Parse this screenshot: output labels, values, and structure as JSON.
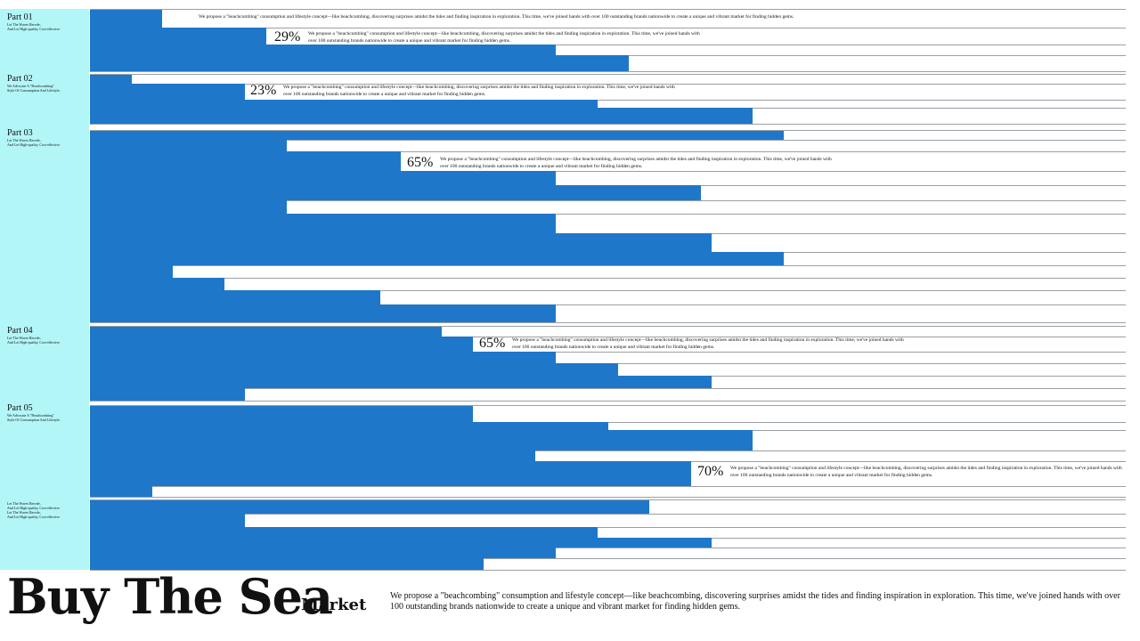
{
  "sections": [
    {
      "title": "Part 01",
      "sub": [
        "Let The Waves Recede,",
        "And Let High-quality, Cost-effective"
      ]
    },
    {
      "title": "Part 02",
      "sub": [
        "We Advocate A \"Beachcombing\"",
        "Style Of Consumption And Lifestyle."
      ]
    },
    {
      "title": "Part 03",
      "sub": [
        "Let The Waves Recede,",
        "And Let High-quality, Cost-effective"
      ]
    },
    {
      "title": "Part 04",
      "sub": [
        "Let The Waves Recede,",
        "And Let High-quality, Cost-effective"
      ]
    },
    {
      "title": "Part 05",
      "sub": [
        "We Advocate A \"Beachcombing\"",
        "Style Of Consumption And Lifestyle."
      ]
    },
    {
      "title": "",
      "sub": [
        "Let The Waves Recede,",
        "And Let High-quality, Cost-effective",
        "Let The Waves Recede,",
        "And Let High-quality, Cost-effective"
      ]
    }
  ],
  "captions": [
    {
      "percent": "",
      "lines": [
        "We propose a \"beachcombing\" consumption and lifestyle concept—like beachcombing, discovering surprises amidst the tides and finding inspiration in exploration. This time, we've joined hands with over 100 outstanding brands nationwide to create a unique and vibrant market for finding hidden gems."
      ]
    },
    {
      "percent": "29%",
      "lines": [
        "We propose a \"beachcombing\" consumption and lifestyle concept—like beachcombing, discovering surprises amidst the tides and finding inspiration in exploration. This time, we've joined hands with",
        "over 100 outstanding brands nationwide to create a unique and vibrant market for finding hidden gems."
      ]
    },
    {
      "percent": "23%",
      "lines": [
        "We propose a \"beachcombing\" consumption and lifestyle concept—like beachcombing, discovering surprises amidst the tides and finding inspiration in exploration. This time, we've joined hands with",
        "over 100 outstanding brands nationwide to create a unique and vibrant market for finding hidden gems."
      ]
    },
    {
      "percent": "65%",
      "lines": [
        "We propose a \"beachcombing\" consumption and lifestyle concept—like beachcombing, discovering surprises amidst the tides and finding inspiration in exploration. This time, we've joined hands with",
        "over 100 outstanding brands nationwide to create a unique and vibrant market for finding hidden gems."
      ]
    },
    {
      "percent": "65%",
      "lines": [
        "We propose a \"beachcombing\" consumption and lifestyle concept—like beachcombing, discovering surprises amidst the tides and finding inspiration in exploration. This time, we've joined hands with",
        "over 100 outstanding brands nationwide to create a unique and vibrant market for finding hidden gems."
      ]
    },
    {
      "percent": "70%",
      "lines": [
        "We propose a \"beachcombing\" consumption and lifestyle concept—like beachcombing, discovering surprises amidst the tides and finding inspiration in exploration. This time, we've joined hands with",
        "over 100 outstanding brands nationwide to create a unique and vibrant market for finding hidden gems."
      ]
    }
  ],
  "footer": {
    "title": "Buy The Sea",
    "subtitle": "Market",
    "paragraph": "We propose a \"beachcombing\" consumption and lifestyle concept—like beachcombing, discovering surprises amidst the tides and finding inspiration in exploration. This time, we've joined hands with over 100 outstanding brands nationwide to create a unique and vibrant market for finding hidden gems."
  },
  "colors": {
    "bar": "#1f77c9",
    "sidebar": "#b3f6f8",
    "line": "#9aa0a6"
  },
  "bar_levels": [
    0.07,
    0.17,
    0.45,
    0.52,
    0.04,
    0.15,
    0.49,
    0.64,
    0.67,
    0.19,
    0.3,
    0.45,
    0.59,
    0.19,
    0.45,
    0.6,
    0.67,
    0.08,
    0.13,
    0.28,
    0.45,
    0.34,
    0.37,
    0.45,
    0.51,
    0.6,
    0.15,
    0.37,
    0.5,
    0.64,
    0.43,
    0.58,
    0.06,
    0.54,
    0.15,
    0.49,
    0.6,
    0.45,
    0.38
  ]
}
